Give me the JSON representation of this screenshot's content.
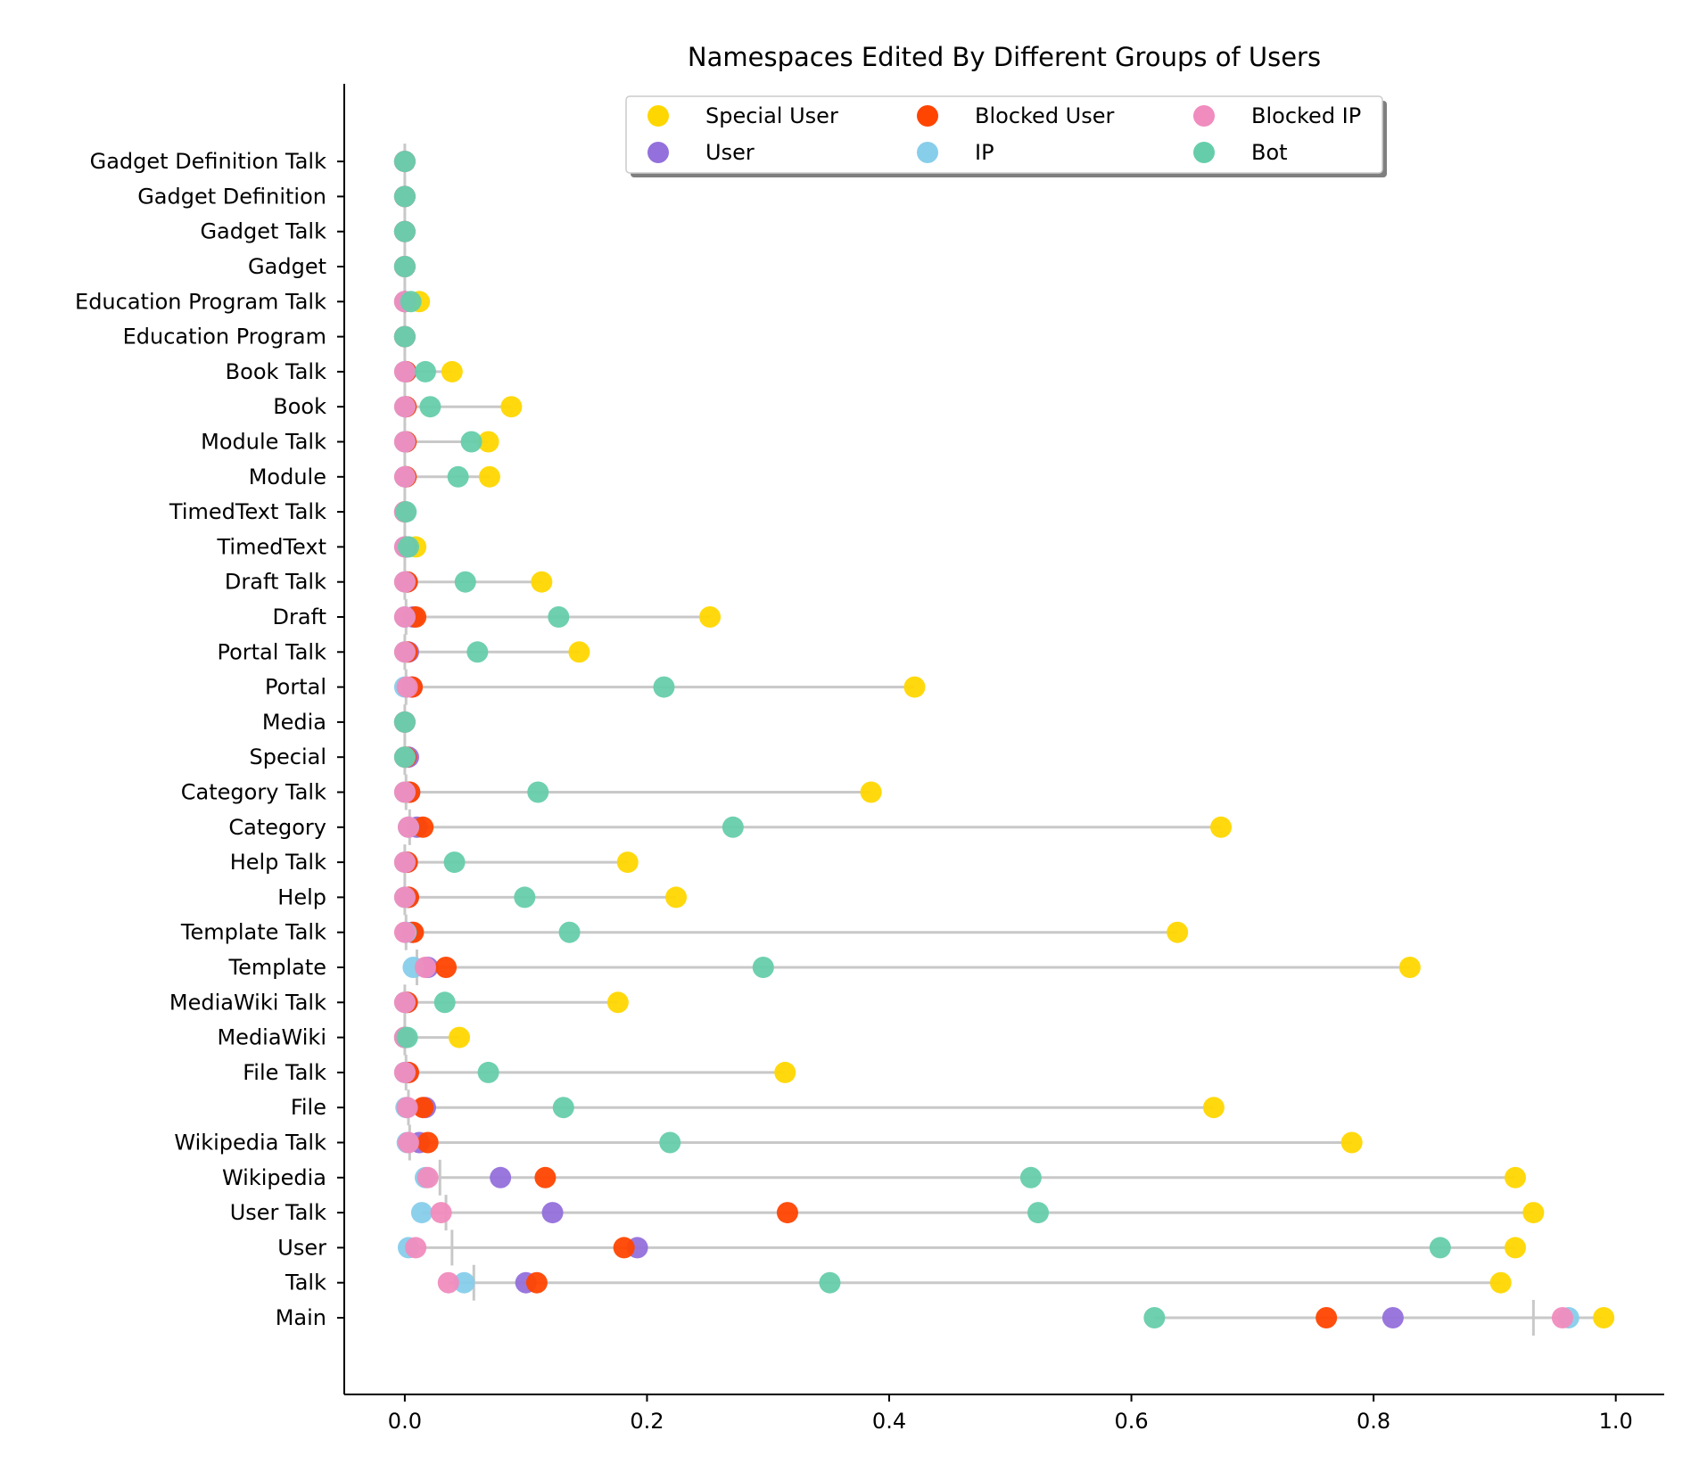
{
  "chart_data": {
    "type": "scatter",
    "title": "Namespaces Edited By Different Groups of Users",
    "xlabel": "",
    "ylabel": "",
    "xlim": [
      -0.05,
      1.04
    ],
    "x_ticks": [
      0.0,
      0.2,
      0.4,
      0.6,
      0.8,
      1.0
    ],
    "x_tick_labels": [
      "0.0",
      "0.2",
      "0.4",
      "0.6",
      "0.8",
      "1.0"
    ],
    "legend_position": "top-center",
    "categories": [
      "Main",
      "Talk",
      "User",
      "User Talk",
      "Wikipedia",
      "Wikipedia Talk",
      "File",
      "File Talk",
      "MediaWiki",
      "MediaWiki Talk",
      "Template",
      "Template Talk",
      "Help",
      "Help Talk",
      "Category",
      "Category Talk",
      "Special",
      "Media",
      "Portal",
      "Portal Talk",
      "Draft",
      "Draft Talk",
      "TimedText",
      "TimedText Talk",
      "Module",
      "Module Talk",
      "Book",
      "Book Talk",
      "Education Program",
      "Education Program Talk",
      "Gadget",
      "Gadget Talk",
      "Gadget Definition",
      "Gadget Definition Talk"
    ],
    "series": [
      {
        "name": "Special User",
        "color": "#FFD700",
        "values": [
          0.99,
          0.905,
          0.917,
          0.932,
          0.917,
          0.782,
          0.668,
          0.314,
          0.045,
          0.176,
          0.83,
          0.638,
          0.224,
          0.184,
          0.674,
          0.385,
          0.0,
          0.0,
          0.421,
          0.144,
          0.252,
          0.113,
          0.009,
          0.0,
          0.07,
          0.069,
          0.088,
          0.039,
          0.0,
          0.012,
          0.0,
          0.0,
          0.0,
          0.0
        ]
      },
      {
        "name": "User",
        "color": "#9370DB",
        "values": [
          0.816,
          0.1,
          0.192,
          0.122,
          0.079,
          0.012,
          0.017,
          0.003,
          0.0,
          0.002,
          0.019,
          0.006,
          0.003,
          0.002,
          0.01,
          0.004,
          0.003,
          0.0,
          0.006,
          0.003,
          0.007,
          0.002,
          0.001,
          0.0,
          0.001,
          0.001,
          0.001,
          0.001,
          0.0,
          0.0,
          0.0,
          0.0,
          0.0,
          0.0
        ]
      },
      {
        "name": "Blocked User",
        "color": "#FF4500",
        "values": [
          0.761,
          0.109,
          0.181,
          0.316,
          0.116,
          0.019,
          0.015,
          0.003,
          0.0,
          0.002,
          0.034,
          0.007,
          0.003,
          0.002,
          0.015,
          0.004,
          0.001,
          0.0,
          0.006,
          0.002,
          0.009,
          0.002,
          0.001,
          0.0,
          0.001,
          0.001,
          0.001,
          0.001,
          0.0,
          0.0,
          0.0,
          0.0,
          0.0,
          0.0
        ]
      },
      {
        "name": "IP",
        "color": "#87CEEB",
        "values": [
          0.961,
          0.049,
          0.003,
          0.014,
          0.017,
          0.002,
          0.001,
          0.0,
          0.0,
          0.0,
          0.007,
          0.001,
          0.0,
          0.0,
          0.003,
          0.0,
          0.0,
          0.0,
          0.0,
          0.0,
          0.0,
          0.0,
          0.0,
          0.0,
          0.0,
          0.0,
          0.0,
          0.0,
          0.0,
          0.0,
          0.0,
          0.0,
          0.0,
          0.0
        ]
      },
      {
        "name": "Blocked IP",
        "color": "#F08CBE",
        "values": [
          0.956,
          0.036,
          0.009,
          0.03,
          0.019,
          0.003,
          0.002,
          0.0,
          0.0,
          0.0,
          0.017,
          0.0,
          0.0,
          0.0,
          0.003,
          0.0,
          0.0,
          0.0,
          0.002,
          0.0,
          0.0,
          0.0,
          0.0,
          0.0,
          0.0,
          0.0,
          0.0,
          0.0,
          0.0,
          0.0,
          0.0,
          0.0,
          0.0,
          0.0
        ]
      },
      {
        "name": "Bot",
        "color": "#66CDAA",
        "values": [
          0.619,
          0.351,
          0.855,
          0.523,
          0.517,
          0.219,
          0.131,
          0.069,
          0.002,
          0.033,
          0.296,
          0.136,
          0.099,
          0.041,
          0.271,
          0.11,
          0.0,
          0.0,
          0.214,
          0.06,
          0.127,
          0.05,
          0.003,
          0.001,
          0.044,
          0.055,
          0.021,
          0.017,
          0.0,
          0.005,
          0.0,
          0.0,
          0.0,
          0.0
        ]
      }
    ],
    "mean_markers": [
      0.932,
      0.057,
      0.039,
      0.034,
      0.029,
      0.004,
      0.003,
      0.001,
      0.0,
      0.0,
      0.01,
      0.001,
      0.0,
      0.0,
      0.004,
      0.001,
      0.0,
      0.0,
      0.001,
      0.0,
      0.001,
      0.0,
      0.0,
      0.0,
      0.0,
      0.0,
      0.0,
      0.0,
      0.0,
      0.0,
      0.0,
      0.0,
      0.0,
      0.0
    ]
  }
}
